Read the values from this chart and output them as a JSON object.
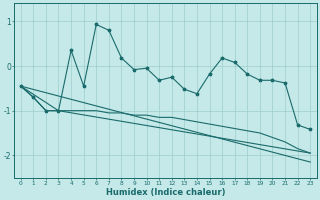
{
  "xlabel": "Humidex (Indice chaleur)",
  "background_color": "#c5e8e8",
  "grid_color": "#9ecece",
  "line_color": "#1a6b6b",
  "xlim": [
    -0.5,
    23.5
  ],
  "ylim": [
    -2.5,
    1.4
  ],
  "yticks": [
    -2,
    -1,
    0,
    1
  ],
  "xticks": [
    0,
    1,
    2,
    3,
    4,
    5,
    6,
    7,
    8,
    9,
    10,
    11,
    12,
    13,
    14,
    15,
    16,
    17,
    18,
    19,
    20,
    21,
    22,
    23
  ],
  "line1_x": [
    0,
    1,
    2,
    3,
    4,
    5,
    6,
    7,
    8,
    9,
    10,
    11,
    12,
    13,
    14,
    15,
    16,
    17,
    18,
    19,
    20,
    21,
    22,
    23
  ],
  "line1_y": [
    -0.45,
    -0.7,
    -1.0,
    -1.0,
    0.35,
    -0.45,
    0.93,
    0.8,
    0.18,
    -0.08,
    -0.05,
    -0.32,
    -0.25,
    -0.52,
    -0.62,
    -0.18,
    0.18,
    0.08,
    -0.18,
    -0.32,
    -0.32,
    -0.38,
    -1.32,
    -1.42
  ],
  "line2_x": [
    0,
    1,
    2,
    3,
    4,
    5,
    6,
    7,
    8,
    9,
    10,
    11,
    12,
    13,
    14,
    15,
    16,
    17,
    18,
    19,
    20,
    21,
    22,
    23
  ],
  "line2_y": [
    -0.45,
    -0.7,
    -1.0,
    -1.0,
    -1.0,
    -1.0,
    -1.0,
    -1.05,
    -1.05,
    -1.1,
    -1.1,
    -1.15,
    -1.15,
    -1.2,
    -1.25,
    -1.3,
    -1.35,
    -1.4,
    -1.45,
    -1.5,
    -1.6,
    -1.7,
    -1.85,
    -1.95
  ],
  "line3_x": [
    0,
    3,
    23
  ],
  "line3_y": [
    -0.45,
    -1.0,
    -1.95
  ],
  "line4_x": [
    0,
    23
  ],
  "line4_y": [
    -0.45,
    -2.15
  ]
}
